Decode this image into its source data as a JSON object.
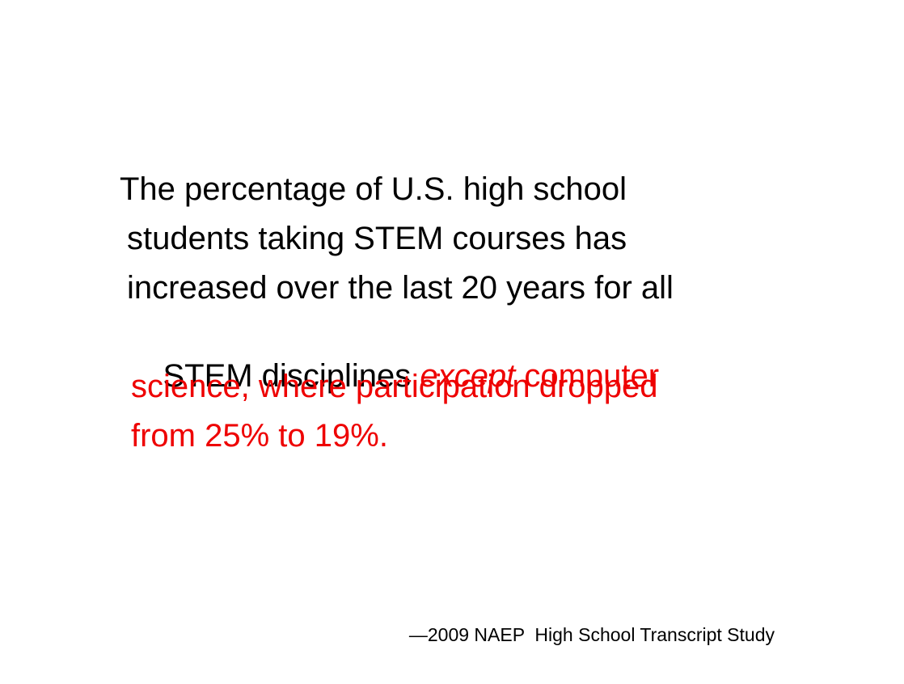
{
  "quote": {
    "lines": [
      "The percentage of U.S. high school",
      "students taking STEM courses has",
      "increased over the last 20 years for all"
    ],
    "line_lead": "STEM disciplines",
    "emphasis": "except",
    "highlight": [
      "computer",
      "science, where participation dropped",
      "from 25% to 19%."
    ]
  },
  "citation": "—2009 NAEP  High School Transcript Study"
}
